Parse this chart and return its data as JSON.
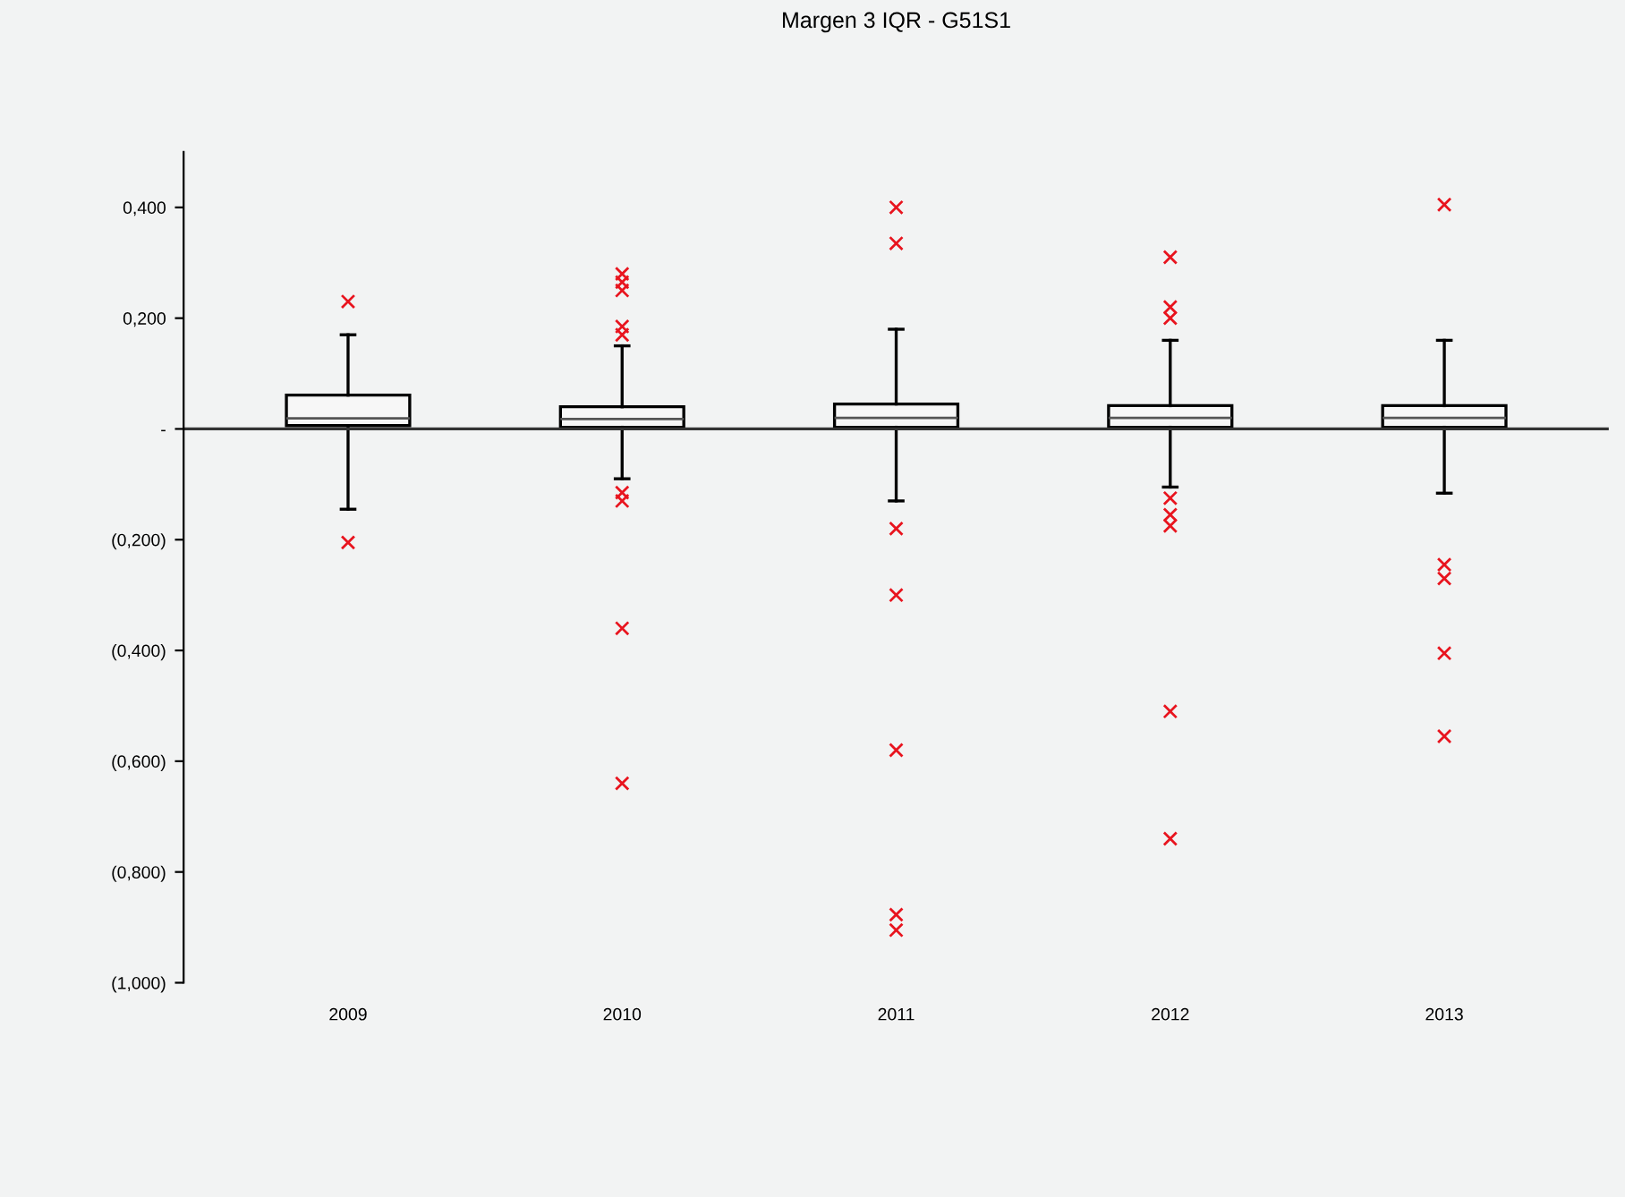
{
  "chart_data": {
    "type": "box",
    "title": "Margen 3 IQR - G51S1",
    "categories": [
      "2009",
      "2010",
      "2011",
      "2012",
      "2013"
    ],
    "boxes": [
      {
        "low": -0.145,
        "q1": 0.006,
        "median": 0.019,
        "q3": 0.061,
        "high": 0.17,
        "outliers": [
          0.23,
          -0.205
        ]
      },
      {
        "low": -0.09,
        "q1": 0.003,
        "median": 0.018,
        "q3": 0.04,
        "high": 0.15,
        "outliers": [
          0.28,
          0.265,
          0.25,
          0.185,
          0.17,
          -0.115,
          -0.13,
          -0.36,
          -0.64
        ]
      },
      {
        "low": -0.13,
        "q1": 0.003,
        "median": 0.02,
        "q3": 0.045,
        "high": 0.18,
        "outliers": [
          0.4,
          0.335,
          -0.18,
          -0.3,
          -0.58,
          -0.877,
          -0.905
        ]
      },
      {
        "low": -0.105,
        "q1": 0.003,
        "median": 0.02,
        "q3": 0.042,
        "high": 0.16,
        "outliers": [
          0.31,
          0.22,
          0.2,
          -0.125,
          -0.155,
          -0.175,
          -0.51,
          -0.74
        ]
      },
      {
        "low": -0.116,
        "q1": 0.003,
        "median": 0.02,
        "q3": 0.042,
        "high": 0.16,
        "outliers": [
          0.405,
          -0.245,
          -0.27,
          -0.405,
          -0.555
        ]
      }
    ],
    "marker": "cross",
    "ylim": [
      -1.0,
      0.5
    ],
    "yticks": [
      {
        "value": -1.0,
        "label": "(1,000)"
      },
      {
        "value": -0.8,
        "label": "(0,800)"
      },
      {
        "value": -0.6,
        "label": "(0,600)"
      },
      {
        "value": -0.4,
        "label": "(0,400)"
      },
      {
        "value": -0.2,
        "label": "(0,200)"
      },
      {
        "value": 0,
        "label": "-"
      },
      {
        "value": 0.2,
        "label": "0,200"
      },
      {
        "value": 0.4,
        "label": "0,400"
      }
    ],
    "ref_lines": [
      {
        "axis": "y",
        "value": 0,
        "color": "#333333"
      }
    ],
    "grid": false,
    "legend": false
  }
}
